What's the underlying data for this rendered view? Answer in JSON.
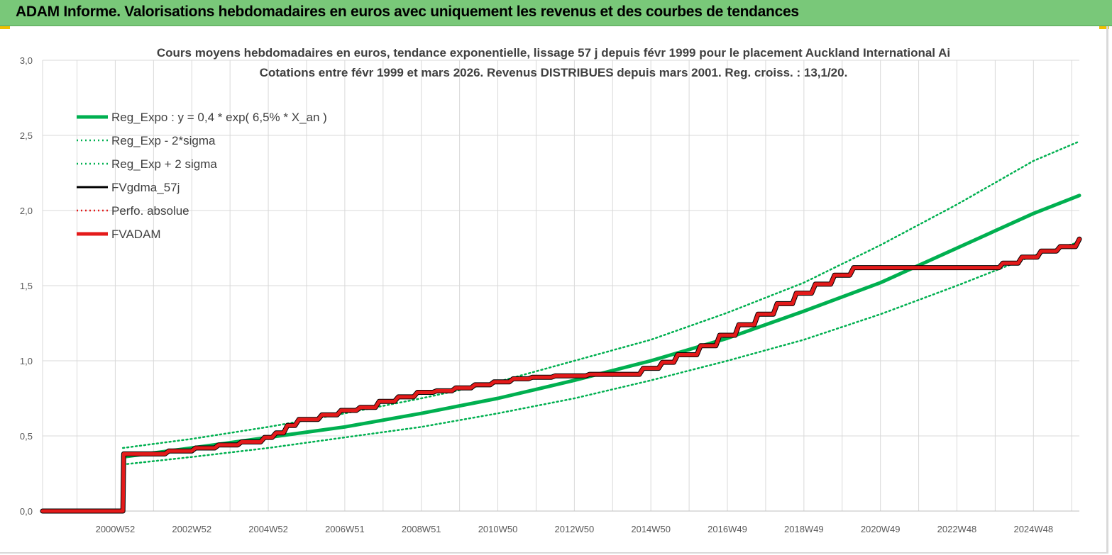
{
  "header": {
    "title": "ADAM Informe. Valorisations hebdomadaires en euros avec uniquement les revenus et des courbes de tendances"
  },
  "colors": {
    "header_bg": "#79c879",
    "trend": "#00b050",
    "fvgdma": "#000000",
    "fvadam": "#e41a1a",
    "perfo": "#e41a1a",
    "grid": "#d9d9d9"
  },
  "chart_data": {
    "type": "line",
    "title": "Cours moyens hebdomadaires en euros, tendance exponentielle, lissage 57 j depuis févr 1999 pour le placement Auckland International Ai",
    "subtitle": "Cotations entre févr 1999 et mars 2026. Revenus DISTRIBUES depuis mars 2001. Reg. croiss. : 13,1/20.",
    "xlabel": "",
    "ylabel": "",
    "ylim": [
      0,
      3
    ],
    "yticks": [
      "0,0",
      "0,5",
      "1,0",
      "1,5",
      "2,0",
      "2,5",
      "3,0"
    ],
    "xlim": [
      1999.1,
      2026.2
    ],
    "xtick_labels": [
      "2000W52",
      "2002W52",
      "2004W52",
      "2006W51",
      "2008W51",
      "2010W50",
      "2012W50",
      "2014W50",
      "2016W49",
      "2018W49",
      "2020W49",
      "2022W48",
      "2024W48"
    ],
    "xtick_positions": [
      2001.0,
      2003.0,
      2005.0,
      2007.0,
      2009.0,
      2011.0,
      2013.0,
      2015.0,
      2017.0,
      2019.0,
      2021.0,
      2023.0,
      2025.0
    ],
    "grid": true,
    "legend_position": "top-left",
    "series": [
      {
        "name": "Reg_Expo : y = 0,4 * exp( 6,5% *  X_an )",
        "style": "solid-thick",
        "color": "#00b050",
        "x": [
          2001.2,
          2003.0,
          2005.0,
          2007.0,
          2009.0,
          2011.0,
          2013.0,
          2015.0,
          2017.0,
          2019.0,
          2021.0,
          2023.0,
          2025.0,
          2026.2
        ],
        "y": [
          0.36,
          0.42,
          0.49,
          0.56,
          0.65,
          0.75,
          0.87,
          1.0,
          1.15,
          1.33,
          1.52,
          1.75,
          1.98,
          2.1
        ]
      },
      {
        "name": "Reg_Exp - 2*sigma",
        "style": "dotted",
        "color": "#00b050",
        "x": [
          2001.2,
          2003.0,
          2005.0,
          2007.0,
          2009.0,
          2011.0,
          2013.0,
          2015.0,
          2017.0,
          2019.0,
          2021.0,
          2023.0,
          2025.0,
          2026.2
        ],
        "y": [
          0.31,
          0.36,
          0.42,
          0.49,
          0.56,
          0.65,
          0.75,
          0.87,
          1.0,
          1.14,
          1.31,
          1.5,
          1.7,
          1.79
        ]
      },
      {
        "name": "Reg_Exp + 2 sigma",
        "style": "dotted",
        "color": "#00b050",
        "x": [
          2001.2,
          2003.0,
          2005.0,
          2007.0,
          2009.0,
          2011.0,
          2013.0,
          2015.0,
          2017.0,
          2019.0,
          2021.0,
          2023.0,
          2025.0,
          2026.2
        ],
        "y": [
          0.42,
          0.48,
          0.56,
          0.65,
          0.75,
          0.86,
          1.0,
          1.14,
          1.32,
          1.52,
          1.77,
          2.04,
          2.33,
          2.46
        ]
      },
      {
        "name": "FVgdma_57j",
        "style": "solid",
        "color": "#000000",
        "x": [
          1999.1,
          2001.2,
          2001.22,
          2002.3,
          2002.4,
          2003.0,
          2003.1,
          2003.6,
          2003.7,
          2004.2,
          2004.3,
          2004.8,
          2004.9,
          2005.1,
          2005.2,
          2005.4,
          2005.5,
          2005.7,
          2005.8,
          2006.3,
          2006.4,
          2006.8,
          2006.9,
          2007.3,
          2007.4,
          2007.8,
          2007.9,
          2008.3,
          2008.4,
          2008.8,
          2008.9,
          2009.3,
          2009.4,
          2009.8,
          2009.9,
          2010.3,
          2010.4,
          2010.8,
          2010.9,
          2011.3,
          2011.4,
          2011.8,
          2011.9,
          2012.4,
          2012.5,
          2013.3,
          2013.4,
          2014.7,
          2014.8,
          2015.2,
          2015.3,
          2015.6,
          2015.7,
          2016.2,
          2016.3,
          2016.7,
          2016.8,
          2017.2,
          2017.3,
          2017.7,
          2017.8,
          2018.2,
          2018.3,
          2018.7,
          2018.8,
          2019.2,
          2019.3,
          2019.7,
          2019.8,
          2020.2,
          2020.3,
          2024.1,
          2024.2,
          2024.6,
          2024.7,
          2025.1,
          2025.2,
          2025.6,
          2025.7,
          2026.1,
          2026.2
        ],
        "y": [
          0,
          0,
          0.38,
          0.38,
          0.4,
          0.4,
          0.42,
          0.42,
          0.44,
          0.44,
          0.46,
          0.46,
          0.49,
          0.49,
          0.52,
          0.52,
          0.57,
          0.57,
          0.61,
          0.61,
          0.64,
          0.64,
          0.67,
          0.67,
          0.69,
          0.69,
          0.73,
          0.73,
          0.76,
          0.76,
          0.79,
          0.79,
          0.8,
          0.8,
          0.82,
          0.82,
          0.84,
          0.84,
          0.86,
          0.86,
          0.88,
          0.88,
          0.89,
          0.89,
          0.9,
          0.9,
          0.91,
          0.91,
          0.95,
          0.95,
          0.99,
          0.99,
          1.04,
          1.04,
          1.1,
          1.1,
          1.17,
          1.17,
          1.24,
          1.24,
          1.31,
          1.31,
          1.38,
          1.38,
          1.45,
          1.45,
          1.51,
          1.51,
          1.57,
          1.57,
          1.62,
          1.62,
          1.65,
          1.65,
          1.69,
          1.69,
          1.73,
          1.73,
          1.76,
          1.76,
          1.81
        ]
      },
      {
        "name": "Perfo. absolue",
        "style": "dotted",
        "color": "#e41a1a",
        "x": [
          1999.1,
          2001.2,
          2001.22,
          2002.3,
          2002.4,
          2003.0,
          2003.1,
          2003.6,
          2003.7,
          2004.2,
          2004.3,
          2004.8,
          2004.9,
          2005.1,
          2005.2,
          2005.4,
          2005.5,
          2005.7,
          2005.8,
          2006.3,
          2006.4,
          2006.8,
          2006.9,
          2007.3,
          2007.4,
          2007.8,
          2007.9,
          2008.3,
          2008.4,
          2008.8,
          2008.9,
          2009.3,
          2009.4,
          2009.8,
          2009.9,
          2010.3,
          2010.4,
          2010.8,
          2010.9,
          2011.3,
          2011.4,
          2011.8,
          2011.9,
          2012.4,
          2012.5,
          2013.3,
          2013.4,
          2014.7,
          2014.8,
          2015.2,
          2015.3,
          2015.6,
          2015.7,
          2016.2,
          2016.3,
          2016.7,
          2016.8,
          2017.2,
          2017.3,
          2017.7,
          2017.8,
          2018.2,
          2018.3,
          2018.7,
          2018.8,
          2019.2,
          2019.3,
          2019.7,
          2019.8,
          2020.2,
          2020.3,
          2024.1,
          2024.2,
          2024.6,
          2024.7,
          2025.1,
          2025.2,
          2025.6,
          2025.7,
          2026.1,
          2026.2
        ],
        "y": [
          0,
          0,
          0.38,
          0.38,
          0.4,
          0.4,
          0.42,
          0.42,
          0.44,
          0.44,
          0.46,
          0.46,
          0.49,
          0.49,
          0.52,
          0.52,
          0.57,
          0.57,
          0.61,
          0.61,
          0.64,
          0.64,
          0.67,
          0.67,
          0.69,
          0.69,
          0.73,
          0.73,
          0.76,
          0.76,
          0.79,
          0.79,
          0.8,
          0.8,
          0.82,
          0.82,
          0.84,
          0.84,
          0.86,
          0.86,
          0.88,
          0.88,
          0.89,
          0.89,
          0.9,
          0.9,
          0.91,
          0.91,
          0.95,
          0.95,
          0.99,
          0.99,
          1.04,
          1.04,
          1.1,
          1.1,
          1.17,
          1.17,
          1.24,
          1.24,
          1.31,
          1.31,
          1.38,
          1.38,
          1.45,
          1.45,
          1.51,
          1.51,
          1.57,
          1.57,
          1.62,
          1.62,
          1.65,
          1.65,
          1.69,
          1.69,
          1.73,
          1.73,
          1.76,
          1.76,
          1.81
        ]
      },
      {
        "name": "FVADAM",
        "style": "solid-thick",
        "color": "#e41a1a",
        "x": [
          1999.1,
          2001.2,
          2001.22,
          2002.3,
          2002.4,
          2003.0,
          2003.1,
          2003.6,
          2003.7,
          2004.2,
          2004.3,
          2004.8,
          2004.9,
          2005.1,
          2005.2,
          2005.4,
          2005.5,
          2005.7,
          2005.8,
          2006.3,
          2006.4,
          2006.8,
          2006.9,
          2007.3,
          2007.4,
          2007.8,
          2007.9,
          2008.3,
          2008.4,
          2008.8,
          2008.9,
          2009.3,
          2009.4,
          2009.8,
          2009.9,
          2010.3,
          2010.4,
          2010.8,
          2010.9,
          2011.3,
          2011.4,
          2011.8,
          2011.9,
          2012.4,
          2012.5,
          2013.3,
          2013.4,
          2014.7,
          2014.8,
          2015.2,
          2015.3,
          2015.6,
          2015.7,
          2016.2,
          2016.3,
          2016.7,
          2016.8,
          2017.2,
          2017.3,
          2017.7,
          2017.8,
          2018.2,
          2018.3,
          2018.7,
          2018.8,
          2019.2,
          2019.3,
          2019.7,
          2019.8,
          2020.2,
          2020.3,
          2024.1,
          2024.2,
          2024.6,
          2024.7,
          2025.1,
          2025.2,
          2025.6,
          2025.7,
          2026.1,
          2026.2
        ],
        "y": [
          0,
          0,
          0.38,
          0.38,
          0.4,
          0.4,
          0.42,
          0.42,
          0.44,
          0.44,
          0.46,
          0.46,
          0.49,
          0.49,
          0.52,
          0.52,
          0.57,
          0.57,
          0.61,
          0.61,
          0.64,
          0.64,
          0.67,
          0.67,
          0.69,
          0.69,
          0.73,
          0.73,
          0.76,
          0.76,
          0.79,
          0.79,
          0.8,
          0.8,
          0.82,
          0.82,
          0.84,
          0.84,
          0.86,
          0.86,
          0.88,
          0.88,
          0.89,
          0.89,
          0.9,
          0.9,
          0.91,
          0.91,
          0.95,
          0.95,
          0.99,
          0.99,
          1.04,
          1.04,
          1.1,
          1.1,
          1.17,
          1.17,
          1.24,
          1.24,
          1.31,
          1.31,
          1.38,
          1.38,
          1.45,
          1.45,
          1.51,
          1.51,
          1.57,
          1.57,
          1.62,
          1.62,
          1.65,
          1.65,
          1.69,
          1.69,
          1.73,
          1.73,
          1.76,
          1.76,
          1.81
        ]
      }
    ]
  }
}
